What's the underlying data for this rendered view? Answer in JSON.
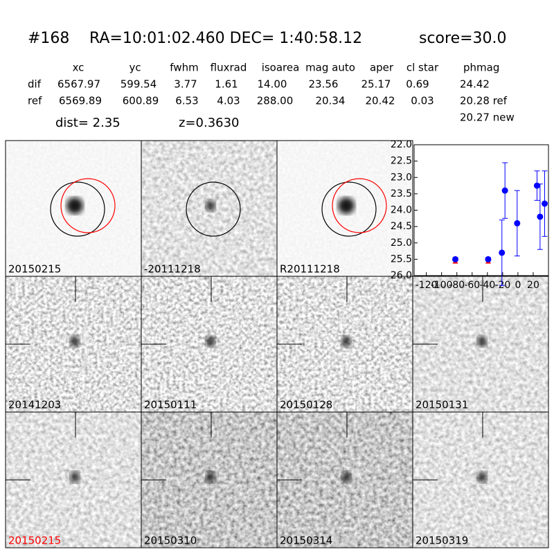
{
  "header": {
    "id": "#168",
    "coords": "RA=10:01:02.460 DEC= 1:40:58.12",
    "score": "score=30.0"
  },
  "table": {
    "columns": [
      "xc",
      "yc",
      "fwhm",
      "fluxrad",
      "isoarea",
      "mag auto",
      "aper",
      "cl star",
      "phmag"
    ],
    "rows": [
      [
        "dif",
        "6567.97",
        "599.54",
        "3.77",
        "1.61",
        "14.00",
        "23.56",
        "25.17",
        "0.69",
        "24.42"
      ],
      [
        "ref",
        "6569.89",
        "600.89",
        "6.53",
        "4.03",
        "288.00",
        "20.34",
        "20.42",
        "0.03",
        "20.28 ref"
      ]
    ],
    "extra": "20.27 new"
  },
  "info": {
    "dist": "dist=  2.35",
    "z": "z=0.3630"
  },
  "panels": [
    "20150215",
    "-20111218",
    "R20111218",
    "20141203",
    "20150111",
    "20150128",
    "20150131",
    "20150215",
    "20150310",
    "20150314",
    "20150319"
  ],
  "chart_data": {
    "type": "scatter",
    "xlim": [
      -136,
      40
    ],
    "ylim": [
      26,
      22
    ],
    "xticks": [
      -120,
      -100,
      -80,
      -60,
      -40,
      -20,
      0,
      20
    ],
    "yticks": [
      {
        "value": 22,
        "label": "22.0"
      },
      {
        "value": 22.5,
        "label": "22.5"
      },
      {
        "value": 23,
        "label": "23.0"
      },
      {
        "value": 23.5,
        "label": "23.5"
      },
      {
        "value": 24,
        "label": "24.0"
      },
      {
        "value": 24.5,
        "label": "24.5"
      },
      {
        "value": 25,
        "label": "25.0"
      },
      {
        "value": 25.5,
        "label": "25.5"
      },
      {
        "value": 26,
        "label": "26.0"
      }
    ],
    "series": [
      {
        "color": "#0000ff",
        "marker": "circle",
        "x": [
          -82,
          -39,
          -21,
          -17,
          -1,
          25,
          29,
          35
        ],
        "values": [
          25.5,
          25.5,
          25.3,
          23.4,
          24.4,
          23.25,
          24.2,
          23.8
        ],
        "errors": [
          0.05,
          0.05,
          1.0,
          0.85,
          1.0,
          0.45,
          1.0,
          1.0
        ]
      },
      {
        "color": "#ff0000",
        "marker": "triangle",
        "x": [
          -82,
          -39
        ],
        "values": [
          25.57,
          25.57
        ]
      }
    ]
  }
}
